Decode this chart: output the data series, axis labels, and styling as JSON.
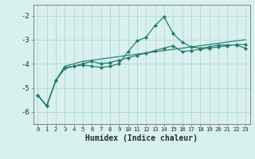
{
  "xlabel": "Humidex (Indice chaleur)",
  "background_color": "#d8f0ee",
  "grid_color": "#b8dcd8",
  "line_color": "#1e7a6e",
  "xlim": [
    -0.5,
    23.5
  ],
  "ylim": [
    -6.5,
    -1.55
  ],
  "yticks": [
    -6,
    -5,
    -4,
    -3,
    -2
  ],
  "xticks": [
    0,
    1,
    2,
    3,
    4,
    5,
    6,
    7,
    8,
    9,
    10,
    11,
    12,
    13,
    14,
    15,
    16,
    17,
    18,
    19,
    20,
    21,
    22,
    23
  ],
  "series1_x": [
    0,
    1,
    2,
    3,
    4,
    5,
    6,
    7,
    8,
    9,
    10,
    11,
    12,
    13,
    14,
    15,
    16,
    17,
    18,
    19,
    20,
    21,
    22,
    23
  ],
  "series1_y": [
    -5.3,
    -5.75,
    -4.7,
    -4.2,
    -4.1,
    -4.05,
    -4.1,
    -4.15,
    -4.1,
    -4.0,
    -3.5,
    -3.05,
    -2.9,
    -2.4,
    -2.05,
    -2.75,
    -3.1,
    -3.3,
    -3.35,
    -3.3,
    -3.22,
    -3.22,
    -3.22,
    -3.35
  ],
  "series2_x": [
    0,
    1,
    2,
    3,
    4,
    5,
    6,
    7,
    8,
    9,
    10,
    11,
    12,
    13,
    14,
    15,
    16,
    17,
    18,
    19,
    20,
    21,
    22,
    23
  ],
  "series2_y": [
    -5.3,
    -5.75,
    -4.7,
    -4.15,
    -4.1,
    -4.0,
    -3.9,
    -4.0,
    -3.95,
    -3.85,
    -3.75,
    -3.65,
    -3.55,
    -3.45,
    -3.35,
    -3.25,
    -3.5,
    -3.45,
    -3.4,
    -3.35,
    -3.3,
    -3.25,
    -3.2,
    -3.2
  ],
  "series3_x": [
    0,
    1,
    2,
    3,
    4,
    5,
    6,
    7,
    8,
    9,
    10,
    11,
    12,
    13,
    14,
    15,
    16,
    17,
    18,
    19,
    20,
    21,
    22,
    23
  ],
  "series3_y": [
    -5.3,
    -5.75,
    -4.7,
    -4.1,
    -4.0,
    -3.9,
    -3.85,
    -3.8,
    -3.75,
    -3.7,
    -3.65,
    -3.6,
    -3.55,
    -3.5,
    -3.45,
    -3.4,
    -3.35,
    -3.3,
    -3.25,
    -3.2,
    -3.15,
    -3.1,
    -3.05,
    -3.0
  ]
}
